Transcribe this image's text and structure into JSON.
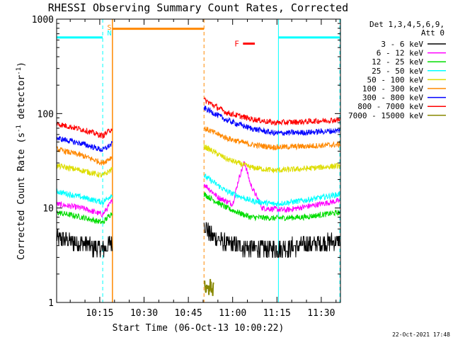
{
  "chart_data": {
    "type": "line",
    "title": "RHESSI Observing Summary Count Rates, Corrected",
    "xlabel": "Start Time (06-Oct-13 10:00:22)",
    "ylabel": "Corrected Count Rate (s",
    "ylabel_sup1": "-1",
    "ylabel_mid": " detector",
    "ylabel_sup2": "-1",
    "ylabel_end": ")",
    "y_scale": "log",
    "ylim": [
      1,
      1000
    ],
    "y_ticks": [
      {
        "value": 1,
        "label": "1"
      },
      {
        "value": 10,
        "label": "10"
      },
      {
        "value": 100,
        "label": "100"
      },
      {
        "value": 1000,
        "label": "1000"
      }
    ],
    "x_range_minutes": [
      0.4,
      96.5
    ],
    "x_ticks": [
      {
        "minute": 15,
        "label": "10:15"
      },
      {
        "minute": 30,
        "label": "10:30"
      },
      {
        "minute": 45,
        "label": "10:45"
      },
      {
        "minute": 60,
        "label": "11:00"
      },
      {
        "minute": 75,
        "label": "11:15"
      },
      {
        "minute": 90,
        "label": "11:30"
      }
    ],
    "legend": {
      "header": [
        "Det 1,3,4,5,6,9,",
        "Att 0"
      ],
      "placement": "right"
    },
    "series": [
      {
        "name": "3 - 6 keV",
        "color": "#000000",
        "x": [
          0.4,
          9,
          16,
          19.3,
          50.3,
          53,
          58,
          62,
          66,
          75,
          85,
          96.3
        ],
        "y": [
          4.8,
          4.2,
          3.6,
          4.5,
          6.8,
          5.0,
          4.2,
          4.0,
          3.8,
          3.7,
          4.1,
          4.5
        ]
      },
      {
        "name": "6 - 12 keV",
        "color": "#ff00ff",
        "x": [
          0.4,
          9,
          16,
          19.3,
          50.3,
          55,
          60,
          62,
          64,
          66,
          70,
          78,
          86,
          96.3
        ],
        "y": [
          11,
          10,
          8.5,
          12,
          18,
          13,
          11,
          20,
          31,
          18,
          10,
          9.5,
          10.5,
          12
        ]
      },
      {
        "name": "12 - 25 keV",
        "color": "#00dd00",
        "x": [
          0.4,
          9,
          16,
          19.3,
          50.3,
          58,
          66,
          74,
          84,
          96.3
        ],
        "y": [
          9,
          8,
          7,
          9,
          14,
          10,
          8,
          7.8,
          8,
          9
        ]
      },
      {
        "name": "25 - 50 keV",
        "color": "#00ffff",
        "x": [
          0.4,
          9,
          16,
          19.3,
          50.3,
          58,
          66,
          74,
          84,
          96.3
        ],
        "y": [
          15,
          13,
          11.5,
          14,
          22,
          15,
          12,
          11,
          12,
          14
        ]
      },
      {
        "name": "50 - 100 keV",
        "color": "#dddd00",
        "x": [
          0.4,
          9,
          16,
          19.3,
          50.3,
          58,
          66,
          74,
          84,
          96.3
        ],
        "y": [
          28,
          25,
          22,
          26,
          45,
          33,
          27,
          25,
          26,
          28
        ]
      },
      {
        "name": "100 - 300 keV",
        "color": "#ff8800",
        "x": [
          0.4,
          9,
          16,
          19.3,
          50.3,
          58,
          66,
          74,
          84,
          96.3
        ],
        "y": [
          42,
          36,
          30,
          35,
          70,
          55,
          47,
          44,
          45,
          47
        ]
      },
      {
        "name": "300 - 800 keV",
        "color": "#0000ff",
        "x": [
          0.4,
          9,
          16,
          19.3,
          50.3,
          58,
          66,
          74,
          84,
          96.3
        ],
        "y": [
          55,
          48,
          41,
          48,
          115,
          85,
          70,
          62,
          63,
          66
        ]
      },
      {
        "name": "800 - 7000 keV",
        "color": "#ff0000",
        "x": [
          0.4,
          9,
          16,
          19.3,
          50.3,
          58,
          66,
          74,
          84,
          96.3
        ],
        "y": [
          78,
          68,
          58,
          70,
          140,
          102,
          88,
          80,
          82,
          86
        ]
      },
      {
        "name": "7000 - 15000 keV",
        "color": "#888800",
        "x": [
          50.5,
          51,
          51.5,
          52,
          52.5,
          53,
          53.5
        ],
        "y": [
          1.6,
          1.2,
          1.7,
          1.3,
          1.6,
          1.2,
          1.5
        ]
      }
    ],
    "markers": [
      {
        "label": "S",
        "color": "#ff8800",
        "minute": 18
      },
      {
        "label": "N",
        "color": "#00ffff",
        "minute": 18
      }
    ],
    "flare": {
      "label": "F",
      "color": "#ff0000",
      "start_minute": 63.5,
      "end_minute": 67.5,
      "y": 550
    },
    "saa_interval": {
      "color": "#ff8800",
      "start_minute": 19.3,
      "end_minute": 50.3,
      "y": 790
    },
    "night_intervals": [
      {
        "color": "#00ffff",
        "start_minute": 0.4,
        "end_minute": 16,
        "y": 640
      },
      {
        "color": "#00ffff",
        "start_minute": 75.5,
        "end_minute": 96.3,
        "y": 640
      }
    ],
    "footer_timestamp": "22-Oct-2021 17:48"
  }
}
